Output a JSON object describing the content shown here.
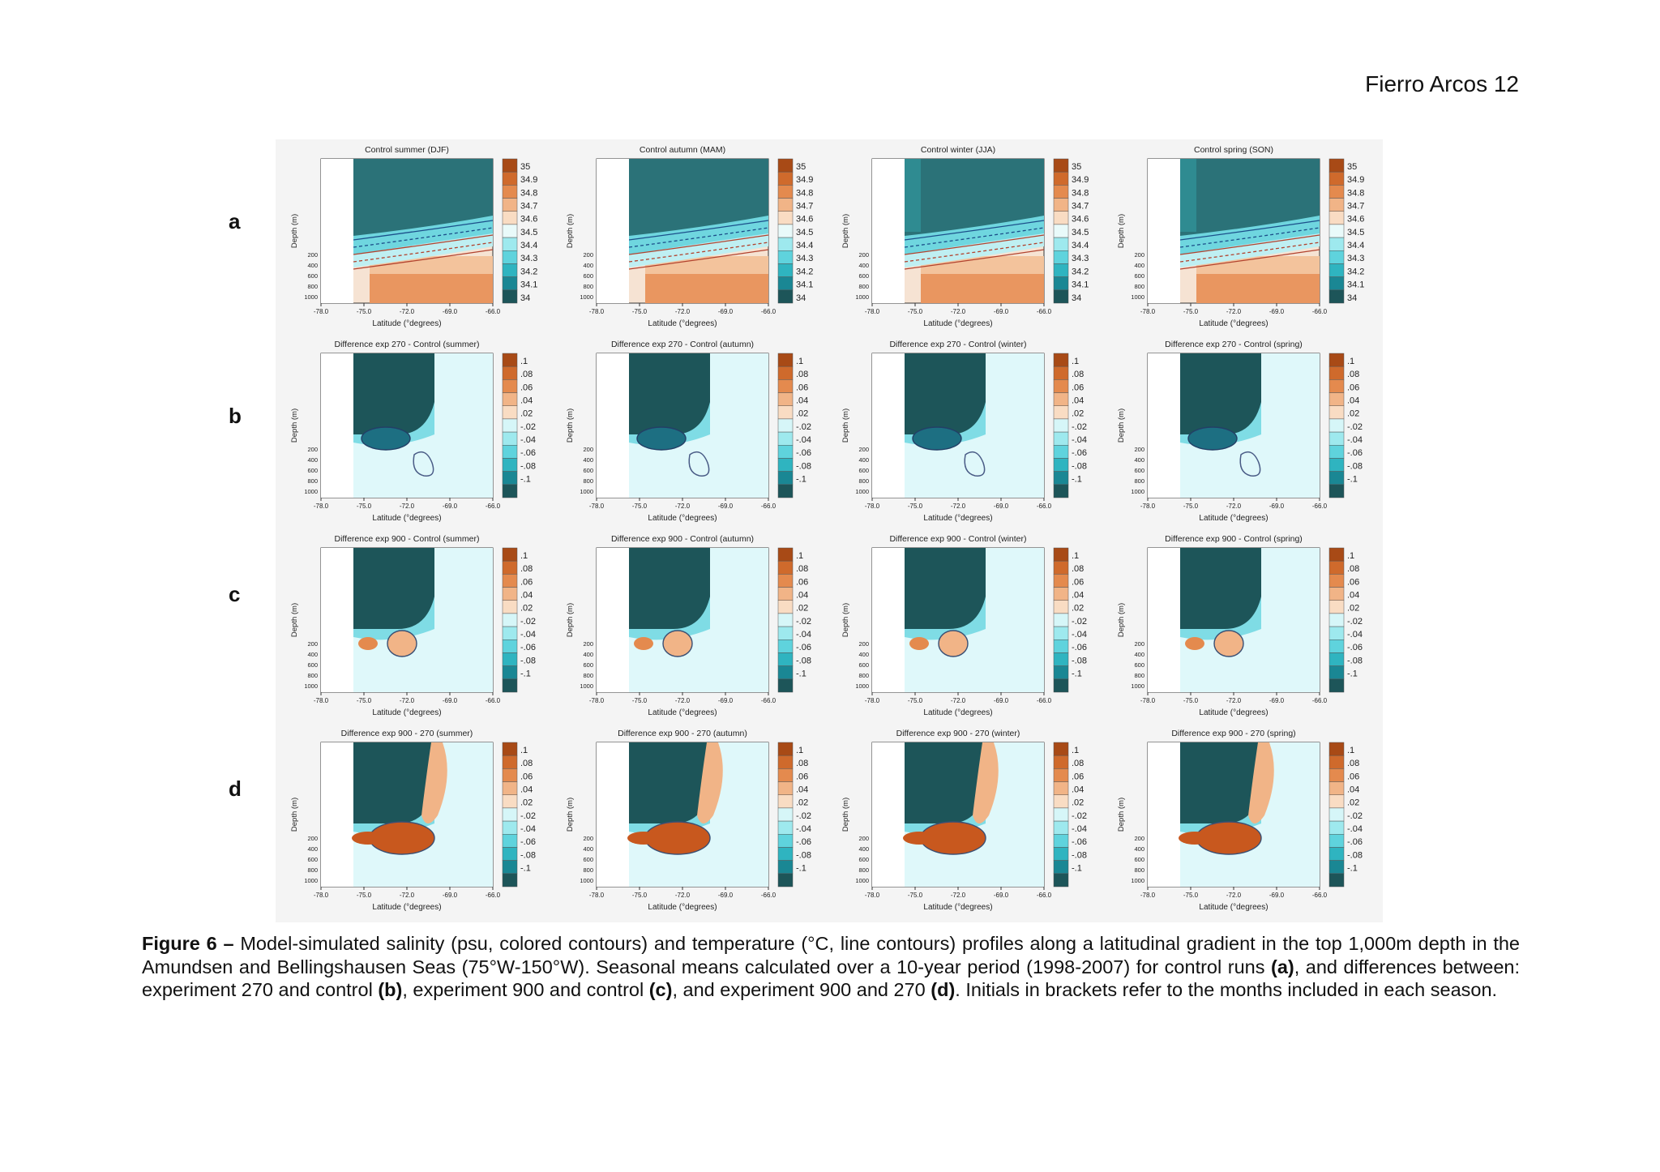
{
  "header": {
    "page_label": "Fierro Arcos  12"
  },
  "figure": {
    "row_labels": [
      "a",
      "b",
      "c",
      "d"
    ],
    "x_axis_label": "Latitude (°degrees)",
    "y_axis_label": "Depth (m)",
    "x_ticks": [
      "-78.0",
      "-75.0",
      "-72.0",
      "-69.0",
      "-66.0"
    ],
    "y_ticks": [
      "200",
      "400",
      "600",
      "800",
      "1000"
    ],
    "rows": [
      {
        "key": "a",
        "titles": [
          "Control summer (DJF)",
          "Control autumn (MAM)",
          "Control winter (JJA)",
          "Control spring (SON)"
        ],
        "colorbar_labels": [
          "35",
          "34.9",
          "34.8",
          "34.7",
          "34.6",
          "34.5",
          "34.4",
          "34.3",
          "34.2",
          "34.1",
          "34"
        ]
      },
      {
        "key": "b",
        "titles": [
          "Difference exp 270 - Control (summer)",
          "Difference exp 270 - Control (autumn)",
          "Difference exp 270 - Control (winter)",
          "Difference exp 270 - Control (spring)"
        ],
        "colorbar_labels": [
          ".1",
          ".08",
          ".06",
          ".04",
          ".02",
          "-.02",
          "-.04",
          "-.06",
          "-.08",
          "-.1"
        ]
      },
      {
        "key": "c",
        "titles": [
          "Difference exp 900 - Control (summer)",
          "Difference exp 900 - Control (autumn)",
          "Difference exp 900 - Control (winter)",
          "Difference exp 900 - Control (spring)"
        ],
        "colorbar_labels": [
          ".1",
          ".08",
          ".06",
          ".04",
          ".02",
          "-.02",
          "-.04",
          "-.06",
          "-.08",
          "-.1"
        ]
      },
      {
        "key": "d",
        "titles": [
          "Difference exp 900 - 270 (summer)",
          "Difference exp 900 - 270 (autumn)",
          "Difference exp 900 - 270 (winter)",
          "Difference exp 900 - 270 (spring)"
        ],
        "colorbar_labels": [
          ".1",
          ".08",
          ".06",
          ".04",
          ".02",
          "-.02",
          "-.04",
          "-.06",
          "-.08",
          "-.1"
        ]
      }
    ],
    "colors": {
      "salinity_ramp": [
        "#a84a16",
        "#cf6a2c",
        "#e48a4e",
        "#f1b487",
        "#f9dcc3",
        "#e9fafa",
        "#9ee9ee",
        "#5fd3dd",
        "#2fb4c0",
        "#1a8794",
        "#1d5559"
      ],
      "difference_ramp": [
        "#a84a16",
        "#cf6a2c",
        "#e48a4e",
        "#f1b487",
        "#f9dcc3",
        "#d6f6f8",
        "#9ee9ee",
        "#5fd3dd",
        "#2fb4c0",
        "#1a8794",
        "#1d5559"
      ],
      "land_mask": "#1d5559",
      "background_ocean": "#d9f6f8"
    }
  },
  "caption": {
    "figure_label": "Figure 6 –",
    "text_1": " Model-simulated salinity (psu, colored contours) and temperature (°C, line contours) profiles along a latitudinal gradient in the top 1,000m depth in the Amundsen and Bellingshausen Seas (75°W-150°W). Seasonal means calculated over a 10-year period (1998-2007) for control runs ",
    "ref_a": "(a)",
    "text_2": ", and differences between: experiment 270 and control ",
    "ref_b": "(b)",
    "text_3": ", experiment 900 and control ",
    "ref_c": "(c)",
    "text_4": ", and experiment 900 and 270 ",
    "ref_d": "(d)",
    "text_5": ". Initials in brackets refer to the months included in each season."
  }
}
